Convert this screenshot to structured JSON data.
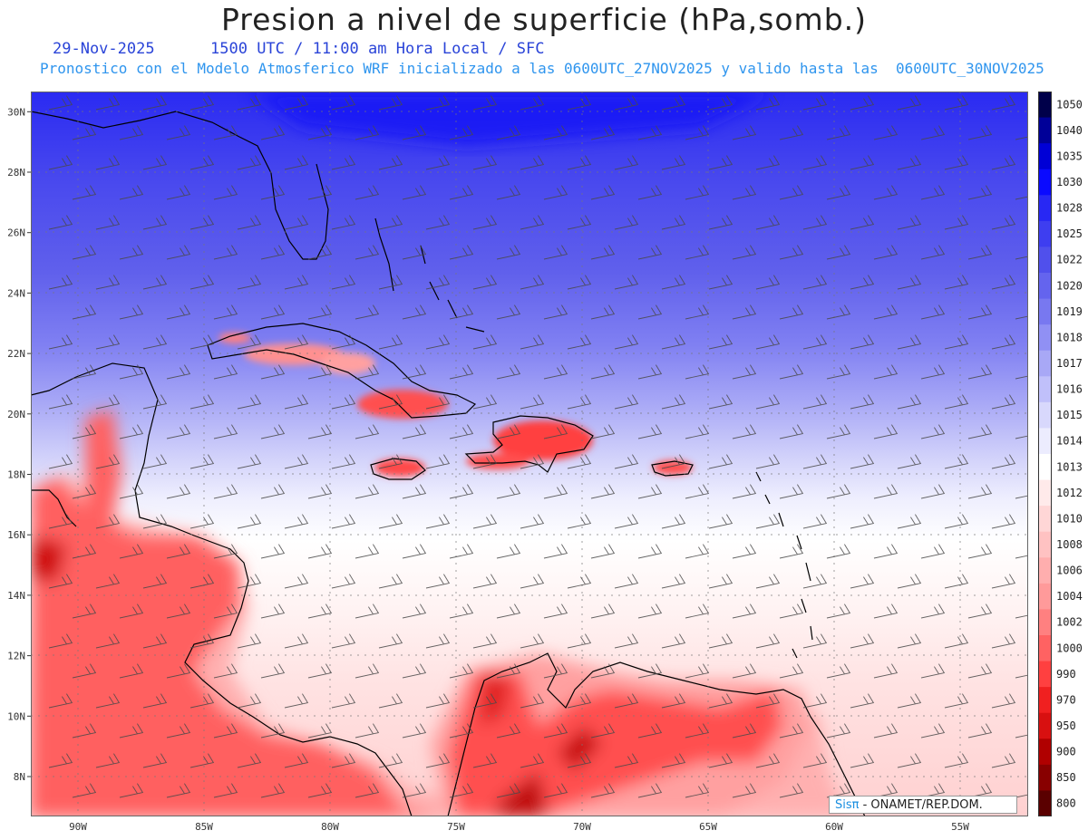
{
  "title": "Presion a nivel de superficie (hPa,somb.)",
  "date": "29-Nov-2025",
  "time_info": "1500 UTC / 11:00 am Hora Local / SFC",
  "forecast_info": "Pronostico con el Modelo Atmosferico WRF inicializado a las 0600UTC_27NOV2025 y valido hasta las  0600UTC_30NOV2025",
  "credit": {
    "brand": "Sisπ",
    "org": " - ONAMET/REP.DOM."
  },
  "lat_labels": [
    "8N",
    "10N",
    "12N",
    "14N",
    "16N",
    "18N",
    "20N",
    "22N",
    "24N",
    "26N",
    "28N",
    "30N"
  ],
  "lon_labels": [
    "90W",
    "85W",
    "80W",
    "75W",
    "70W",
    "65W",
    "60W",
    "55W"
  ],
  "legend": {
    "levels": [
      "1050",
      "1040",
      "1035",
      "1030",
      "1028",
      "1025",
      "1022",
      "1020",
      "1019",
      "1018",
      "1017",
      "1016",
      "1015",
      "1014",
      "1013",
      "1012",
      "1010",
      "1008",
      "1006",
      "1004",
      "1002",
      "1000",
      "990",
      "970",
      "950",
      "900",
      "850",
      "800"
    ],
    "colors": [
      "#00004a",
      "#000098",
      "#0000d6",
      "#0a0aff",
      "#2828f4",
      "#3e3ef0",
      "#5050ec",
      "#6464ee",
      "#7878f0",
      "#9090f4",
      "#a8a8f6",
      "#c0c0fa",
      "#d8d8fc",
      "#ececfe",
      "#ffffff",
      "#ffeaea",
      "#ffd6d6",
      "#ffc2c2",
      "#ffaeae",
      "#ff9a9a",
      "#ff8080",
      "#ff6262",
      "#ff4040",
      "#f02020",
      "#d81010",
      "#b00000",
      "#880000",
      "#5a0000"
    ]
  },
  "colors": {
    "high": "#3030ee",
    "low": "#e81414",
    "land_outline": "#000000"
  }
}
